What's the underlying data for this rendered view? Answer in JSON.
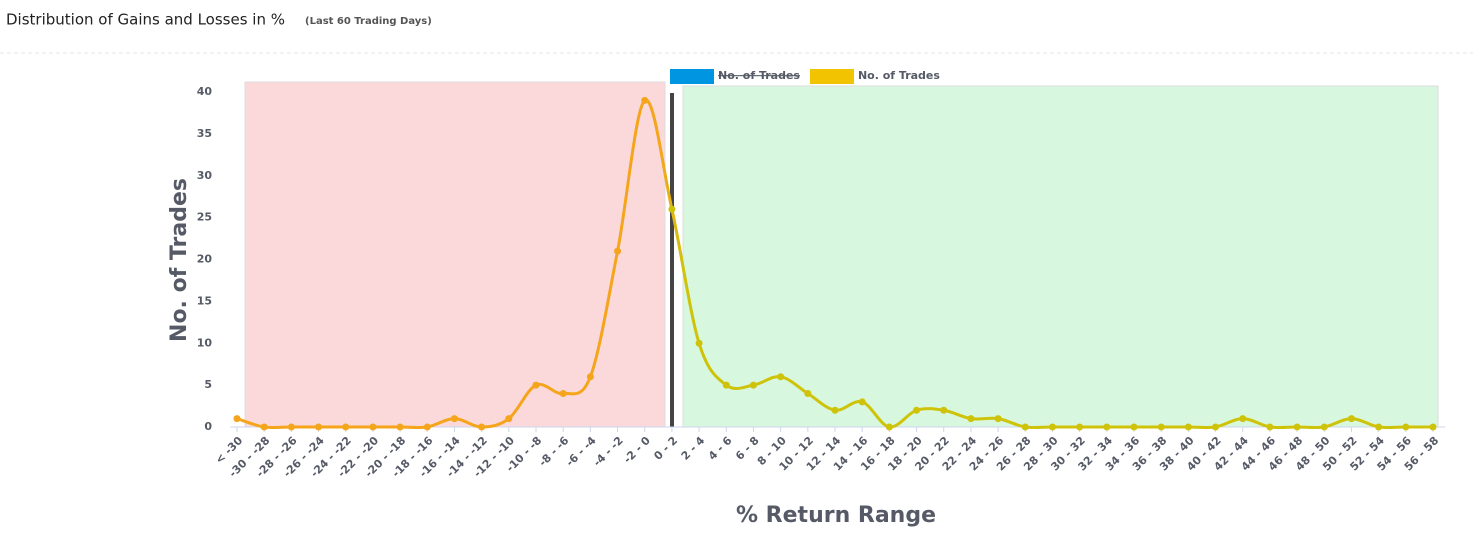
{
  "chart_data": {
    "type": "line",
    "title": "Distribution of Gains and Losses in %",
    "subtitle": "(Last 60 Trading Days)",
    "x_label": "% Return Range",
    "y_label": "No. of Trades",
    "categories": [
      "< -30",
      "-30 - -28",
      "-28 - -26",
      "-26 - -24",
      "-24 - -22",
      "-22 - -20",
      "-20 - -18",
      "-18 - -16",
      "-16 - -14",
      "-14 - -12",
      "-12 - -10",
      "-10 - -8",
      "-8 - -6",
      "-6 - -4",
      "-4 - -2",
      "-2 - 0",
      "0 - 2",
      "2 - 4",
      "4 - 6",
      "6 - 8",
      "8 - 10",
      "10 - 12",
      "12 - 14",
      "14 - 16",
      "16 - 18",
      "18 - 20",
      "20 - 22",
      "22 - 24",
      "24 - 26",
      "26 - 28",
      "28 - 30",
      "30 - 32",
      "32 - 34",
      "34 - 36",
      "36 - 38",
      "38 - 40",
      "40 - 42",
      "42 - 44",
      "44 - 46",
      "46 - 48",
      "48 - 50",
      "50 - 52",
      "52 - 54",
      "54 - 56",
      "56 - 58"
    ],
    "series": [
      {
        "name": "No. of Trades",
        "color": "#0095e0",
        "hidden": true
      },
      {
        "name": "No. of Trades",
        "color": "#f2c300",
        "negative_color": "#f5a51c",
        "positive_color": "#cfc30a",
        "values": [
          1,
          0,
          0,
          0,
          0,
          0,
          0,
          0,
          1,
          0,
          1,
          5,
          4,
          6,
          21,
          39,
          26,
          10,
          5,
          5,
          6,
          4,
          2,
          3,
          0,
          2,
          2,
          1,
          1,
          0,
          0,
          0,
          0,
          0,
          0,
          0,
          0,
          1,
          0,
          0,
          0,
          1,
          0,
          0,
          0
        ]
      }
    ],
    "ylim": [
      0,
      40
    ],
    "yticks": [
      0,
      5,
      10,
      15,
      20,
      25,
      30,
      35,
      40
    ],
    "smooth": true
  }
}
